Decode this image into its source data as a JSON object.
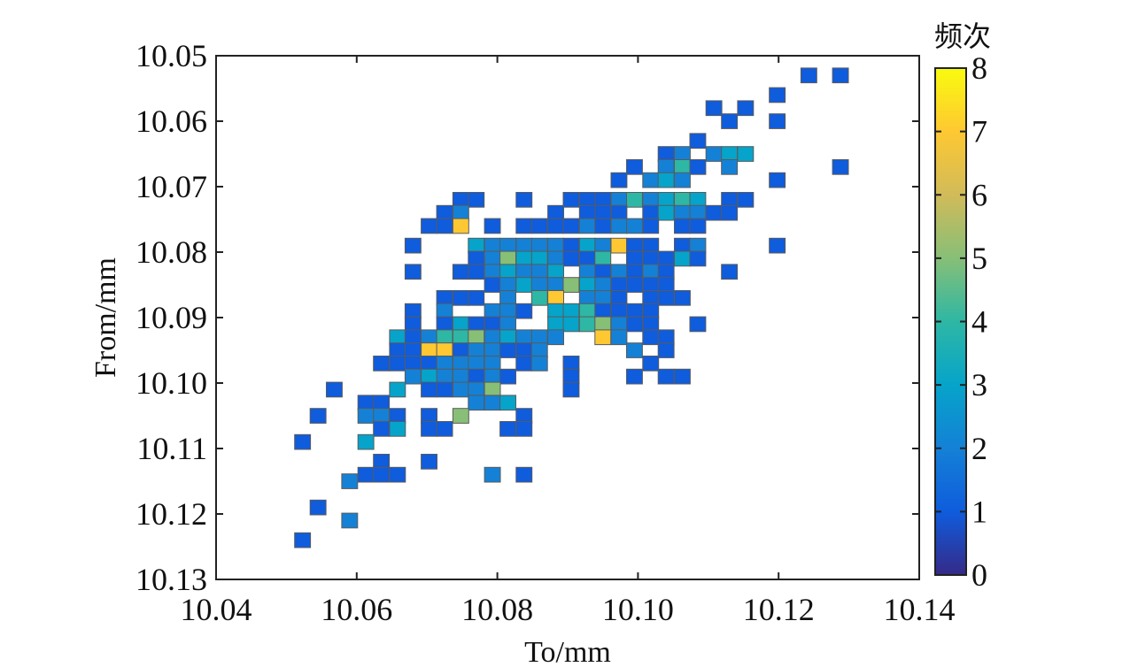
{
  "chart_data": {
    "type": "heatmap",
    "xlabel": "To/mm",
    "ylabel": "From/mm",
    "colorbar_label": "频次",
    "xlim": [
      10.04,
      10.14
    ],
    "ylim": [
      10.05,
      10.13
    ],
    "y_inverted": true,
    "x_ticks": [
      "10.04",
      "10.06",
      "10.08",
      "10.10",
      "10.12",
      "10.14"
    ],
    "y_ticks": [
      "10.05",
      "10.06",
      "10.07",
      "10.08",
      "10.09",
      "10.10",
      "10.11",
      "10.12",
      "10.13"
    ],
    "colorbar_range": [
      0,
      8
    ],
    "colorbar_ticks": [
      "0",
      "1",
      "2",
      "3",
      "4",
      "5",
      "6",
      "7",
      "8"
    ],
    "colormap": "parula",
    "cell_size": 0.00225,
    "grid": false,
    "cells": [
      [
        10.1243,
        10.053,
        1
      ],
      [
        10.1288,
        10.053,
        1
      ],
      [
        10.1198,
        10.056,
        1
      ],
      [
        10.1108,
        10.058,
        1
      ],
      [
        10.1153,
        10.058,
        1
      ],
      [
        10.113,
        10.06,
        1
      ],
      [
        10.1198,
        10.06,
        1
      ],
      [
        10.1085,
        10.063,
        1
      ],
      [
        10.104,
        10.065,
        1
      ],
      [
        10.1063,
        10.065,
        2
      ],
      [
        10.1108,
        10.065,
        2
      ],
      [
        10.113,
        10.065,
        3
      ],
      [
        10.1153,
        10.065,
        3
      ],
      [
        10.0995,
        10.067,
        1
      ],
      [
        10.104,
        10.067,
        2
      ],
      [
        10.1063,
        10.067,
        4
      ],
      [
        10.1085,
        10.067,
        1
      ],
      [
        10.113,
        10.067,
        2
      ],
      [
        10.1288,
        10.067,
        1
      ],
      [
        10.0973,
        10.069,
        1
      ],
      [
        10.1018,
        10.069,
        2
      ],
      [
        10.104,
        10.069,
        3
      ],
      [
        10.1063,
        10.069,
        2
      ],
      [
        10.1198,
        10.069,
        1
      ],
      [
        10.0748,
        10.072,
        1
      ],
      [
        10.077,
        10.072,
        1
      ],
      [
        10.0838,
        10.072,
        1
      ],
      [
        10.0905,
        10.072,
        1
      ],
      [
        10.0928,
        10.072,
        1
      ],
      [
        10.095,
        10.072,
        1
      ],
      [
        10.0973,
        10.072,
        2
      ],
      [
        10.0995,
        10.072,
        4
      ],
      [
        10.1018,
        10.072,
        2
      ],
      [
        10.104,
        10.072,
        3
      ],
      [
        10.1063,
        10.072,
        4
      ],
      [
        10.1085,
        10.072,
        3
      ],
      [
        10.113,
        10.072,
        1
      ],
      [
        10.1153,
        10.072,
        1
      ],
      [
        10.0725,
        10.074,
        1
      ],
      [
        10.0748,
        10.074,
        2
      ],
      [
        10.0883,
        10.074,
        1
      ],
      [
        10.0928,
        10.074,
        1
      ],
      [
        10.095,
        10.074,
        1
      ],
      [
        10.0973,
        10.074,
        1
      ],
      [
        10.1018,
        10.074,
        1
      ],
      [
        10.104,
        10.074,
        3
      ],
      [
        10.1063,
        10.074,
        2
      ],
      [
        10.1085,
        10.074,
        2
      ],
      [
        10.1108,
        10.074,
        1
      ],
      [
        10.113,
        10.074,
        1
      ],
      [
        10.0703,
        10.076,
        1
      ],
      [
        10.0725,
        10.076,
        1
      ],
      [
        10.0748,
        10.076,
        7
      ],
      [
        10.0793,
        10.076,
        1
      ],
      [
        10.0838,
        10.076,
        1
      ],
      [
        10.086,
        10.076,
        1
      ],
      [
        10.0883,
        10.076,
        1
      ],
      [
        10.0905,
        10.076,
        1
      ],
      [
        10.0928,
        10.076,
        2
      ],
      [
        10.095,
        10.076,
        1
      ],
      [
        10.0973,
        10.076,
        2
      ],
      [
        10.0995,
        10.076,
        2
      ],
      [
        10.1018,
        10.076,
        1
      ],
      [
        10.1063,
        10.076,
        1
      ],
      [
        10.1085,
        10.076,
        1
      ],
      [
        10.068,
        10.079,
        1
      ],
      [
        10.077,
        10.079,
        3
      ],
      [
        10.0793,
        10.079,
        2
      ],
      [
        10.0815,
        10.079,
        2
      ],
      [
        10.0838,
        10.079,
        2
      ],
      [
        10.086,
        10.079,
        2
      ],
      [
        10.0883,
        10.079,
        2
      ],
      [
        10.0905,
        10.079,
        1
      ],
      [
        10.0928,
        10.079,
        3
      ],
      [
        10.095,
        10.079,
        2
      ],
      [
        10.0973,
        10.079,
        7
      ],
      [
        10.0995,
        10.079,
        1
      ],
      [
        10.1018,
        10.079,
        1
      ],
      [
        10.1063,
        10.079,
        1
      ],
      [
        10.1085,
        10.079,
        2
      ],
      [
        10.1198,
        10.079,
        1
      ],
      [
        10.077,
        10.081,
        1
      ],
      [
        10.0793,
        10.081,
        2
      ],
      [
        10.0815,
        10.081,
        5
      ],
      [
        10.0838,
        10.081,
        3
      ],
      [
        10.086,
        10.081,
        3
      ],
      [
        10.0883,
        10.081,
        2
      ],
      [
        10.0905,
        10.081,
        1
      ],
      [
        10.0928,
        10.081,
        1
      ],
      [
        10.095,
        10.081,
        4
      ],
      [
        10.0995,
        10.081,
        1
      ],
      [
        10.1018,
        10.081,
        1
      ],
      [
        10.104,
        10.081,
        1
      ],
      [
        10.1063,
        10.081,
        3
      ],
      [
        10.1085,
        10.081,
        1
      ],
      [
        10.068,
        10.083,
        1
      ],
      [
        10.0748,
        10.083,
        1
      ],
      [
        10.077,
        10.083,
        1
      ],
      [
        10.0793,
        10.083,
        2
      ],
      [
        10.0815,
        10.083,
        3
      ],
      [
        10.0838,
        10.083,
        2
      ],
      [
        10.086,
        10.083,
        2
      ],
      [
        10.0883,
        10.083,
        3
      ],
      [
        10.0928,
        10.083,
        2
      ],
      [
        10.095,
        10.083,
        1
      ],
      [
        10.0973,
        10.083,
        2
      ],
      [
        10.0995,
        10.083,
        1
      ],
      [
        10.1018,
        10.083,
        2
      ],
      [
        10.104,
        10.083,
        1
      ],
      [
        10.113,
        10.083,
        1
      ],
      [
        10.0793,
        10.085,
        1
      ],
      [
        10.0815,
        10.085,
        2
      ],
      [
        10.0838,
        10.085,
        3
      ],
      [
        10.086,
        10.085,
        2
      ],
      [
        10.0883,
        10.085,
        2
      ],
      [
        10.0905,
        10.085,
        5
      ],
      [
        10.0928,
        10.085,
        3
      ],
      [
        10.095,
        10.085,
        2
      ],
      [
        10.0973,
        10.085,
        1
      ],
      [
        10.0995,
        10.085,
        1
      ],
      [
        10.1018,
        10.085,
        1
      ],
      [
        10.104,
        10.085,
        1
      ],
      [
        10.0725,
        10.087,
        1
      ],
      [
        10.0748,
        10.087,
        1
      ],
      [
        10.077,
        10.087,
        1
      ],
      [
        10.0815,
        10.087,
        2
      ],
      [
        10.086,
        10.087,
        4
      ],
      [
        10.0883,
        10.087,
        7
      ],
      [
        10.0928,
        10.087,
        2
      ],
      [
        10.095,
        10.087,
        2
      ],
      [
        10.0973,
        10.087,
        1
      ],
      [
        10.1018,
        10.087,
        1
      ],
      [
        10.104,
        10.087,
        1
      ],
      [
        10.1063,
        10.087,
        1
      ],
      [
        10.068,
        10.089,
        1
      ],
      [
        10.0725,
        10.089,
        2
      ],
      [
        10.0793,
        10.089,
        2
      ],
      [
        10.0815,
        10.089,
        2
      ],
      [
        10.0838,
        10.089,
        1
      ],
      [
        10.0883,
        10.089,
        3
      ],
      [
        10.0905,
        10.089,
        3
      ],
      [
        10.0928,
        10.089,
        4
      ],
      [
        10.095,
        10.089,
        1
      ],
      [
        10.0973,
        10.089,
        1
      ],
      [
        10.0995,
        10.089,
        1
      ],
      [
        10.1018,
        10.089,
        1
      ],
      [
        10.068,
        10.091,
        1
      ],
      [
        10.0725,
        10.091,
        1
      ],
      [
        10.0748,
        10.091,
        3
      ],
      [
        10.077,
        10.091,
        1
      ],
      [
        10.0793,
        10.091,
        1
      ],
      [
        10.0815,
        10.091,
        2
      ],
      [
        10.0883,
        10.091,
        3
      ],
      [
        10.0905,
        10.091,
        3
      ],
      [
        10.0928,
        10.091,
        4
      ],
      [
        10.095,
        10.091,
        5
      ],
      [
        10.0973,
        10.091,
        2
      ],
      [
        10.0995,
        10.091,
        1
      ],
      [
        10.1018,
        10.091,
        1
      ],
      [
        10.1085,
        10.091,
        1
      ],
      [
        10.0658,
        10.093,
        3
      ],
      [
        10.068,
        10.093,
        1
      ],
      [
        10.0703,
        10.093,
        2
      ],
      [
        10.0725,
        10.093,
        4
      ],
      [
        10.0748,
        10.093,
        4
      ],
      [
        10.077,
        10.093,
        5
      ],
      [
        10.0793,
        10.093,
        2
      ],
      [
        10.0815,
        10.093,
        3
      ],
      [
        10.0838,
        10.093,
        2
      ],
      [
        10.086,
        10.093,
        2
      ],
      [
        10.0883,
        10.093,
        2
      ],
      [
        10.095,
        10.093,
        7
      ],
      [
        10.0973,
        10.093,
        2
      ],
      [
        10.1018,
        10.093,
        1
      ],
      [
        10.104,
        10.093,
        1
      ],
      [
        10.0658,
        10.095,
        1
      ],
      [
        10.068,
        10.095,
        1
      ],
      [
        10.0703,
        10.095,
        7
      ],
      [
        10.0725,
        10.095,
        7
      ],
      [
        10.0748,
        10.095,
        1
      ],
      [
        10.077,
        10.095,
        2
      ],
      [
        10.0793,
        10.095,
        2
      ],
      [
        10.0815,
        10.095,
        1
      ],
      [
        10.0838,
        10.095,
        1
      ],
      [
        10.086,
        10.095,
        2
      ],
      [
        10.0995,
        10.095,
        2
      ],
      [
        10.104,
        10.095,
        1
      ],
      [
        10.0635,
        10.097,
        1
      ],
      [
        10.0658,
        10.097,
        1
      ],
      [
        10.068,
        10.097,
        1
      ],
      [
        10.0703,
        10.097,
        1
      ],
      [
        10.0725,
        10.097,
        2
      ],
      [
        10.0748,
        10.097,
        2
      ],
      [
        10.077,
        10.097,
        2
      ],
      [
        10.0793,
        10.097,
        2
      ],
      [
        10.0838,
        10.097,
        1
      ],
      [
        10.086,
        10.097,
        2
      ],
      [
        10.0905,
        10.097,
        1
      ],
      [
        10.1018,
        10.097,
        1
      ],
      [
        10.068,
        10.099,
        2
      ],
      [
        10.0703,
        10.099,
        3
      ],
      [
        10.0725,
        10.099,
        2
      ],
      [
        10.0748,
        10.099,
        2
      ],
      [
        10.077,
        10.099,
        1
      ],
      [
        10.0793,
        10.099,
        2
      ],
      [
        10.0815,
        10.099,
        1
      ],
      [
        10.0905,
        10.099,
        1
      ],
      [
        10.0995,
        10.099,
        1
      ],
      [
        10.104,
        10.099,
        1
      ],
      [
        10.1063,
        10.099,
        1
      ],
      [
        10.0568,
        10.101,
        1
      ],
      [
        10.0658,
        10.101,
        3
      ],
      [
        10.0703,
        10.101,
        1
      ],
      [
        10.0725,
        10.101,
        1
      ],
      [
        10.0748,
        10.101,
        2
      ],
      [
        10.077,
        10.101,
        2
      ],
      [
        10.0793,
        10.101,
        5
      ],
      [
        10.0905,
        10.101,
        1
      ],
      [
        10.0613,
        10.103,
        1
      ],
      [
        10.0635,
        10.103,
        1
      ],
      [
        10.077,
        10.103,
        2
      ],
      [
        10.0793,
        10.103,
        2
      ],
      [
        10.0815,
        10.103,
        3
      ],
      [
        10.0545,
        10.105,
        1
      ],
      [
        10.0613,
        10.105,
        2
      ],
      [
        10.0635,
        10.105,
        2
      ],
      [
        10.0658,
        10.105,
        1
      ],
      [
        10.0703,
        10.105,
        1
      ],
      [
        10.0748,
        10.105,
        5
      ],
      [
        10.0838,
        10.105,
        1
      ],
      [
        10.0635,
        10.107,
        1
      ],
      [
        10.0658,
        10.107,
        3
      ],
      [
        10.0703,
        10.107,
        1
      ],
      [
        10.0725,
        10.107,
        1
      ],
      [
        10.0815,
        10.107,
        1
      ],
      [
        10.0838,
        10.107,
        1
      ],
      [
        10.0523,
        10.109,
        1
      ],
      [
        10.0613,
        10.109,
        3
      ],
      [
        10.0635,
        10.112,
        1
      ],
      [
        10.0703,
        10.112,
        1
      ],
      [
        10.0613,
        10.114,
        1
      ],
      [
        10.0635,
        10.114,
        1
      ],
      [
        10.0658,
        10.114,
        1
      ],
      [
        10.0793,
        10.114,
        2
      ],
      [
        10.0838,
        10.114,
        1
      ],
      [
        10.059,
        10.115,
        2
      ],
      [
        10.0545,
        10.119,
        1
      ],
      [
        10.059,
        10.121,
        2
      ],
      [
        10.0523,
        10.124,
        1
      ]
    ]
  }
}
